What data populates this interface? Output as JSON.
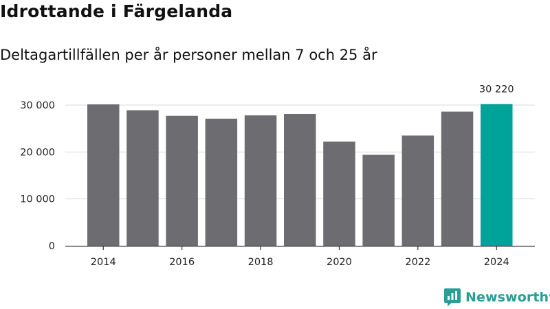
{
  "header": {
    "title": "Idrottande i Färgelanda",
    "subtitle": "Deltagartillfällen per år personer mellan 7 och 25 år"
  },
  "brand": {
    "name": "Newsworthy"
  },
  "colors": {
    "bar": "#6d6c71",
    "highlight": "#00a39a",
    "grid": "#d9d9d9",
    "axis": "#333333",
    "brand": "#2a9d94"
  },
  "chart_data": {
    "type": "bar",
    "title": "Idrottande i Färgelanda",
    "subtitle": "Deltagartillfällen per år personer mellan 7 och 25 år",
    "xlabel": "",
    "ylabel": "",
    "categories": [
      "2014",
      "2015",
      "2016",
      "2017",
      "2018",
      "2019",
      "2020",
      "2021",
      "2022",
      "2023",
      "2024"
    ],
    "values": [
      30150,
      28900,
      27700,
      27100,
      27800,
      28100,
      22200,
      19400,
      23500,
      28600,
      30220
    ],
    "highlight_index": 10,
    "data_labels": [
      {
        "index": 10,
        "text": "30 220"
      }
    ],
    "ylim": [
      0,
      30000
    ],
    "y_ticks": [
      0,
      10000,
      20000,
      30000
    ],
    "y_tick_labels": [
      "0",
      "10 000",
      "20 000",
      "30 000"
    ],
    "x_tick_labels": [
      "2014",
      "2016",
      "2018",
      "2020",
      "2022",
      "2024"
    ],
    "grid": true,
    "legend": "none"
  }
}
